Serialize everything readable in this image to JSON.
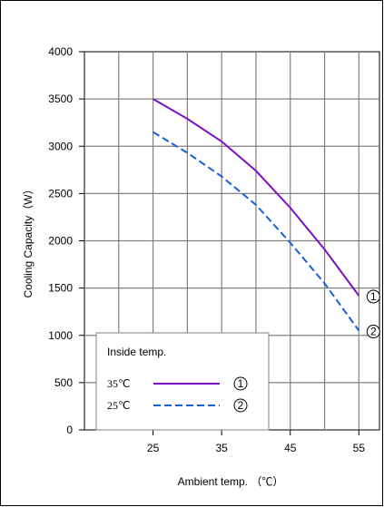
{
  "chart_data": {
    "type": "line",
    "xlabel": "Ambient temp. （℃）",
    "ylabel": "Cooling Capacity（W）",
    "xlim": [
      15,
      58
    ],
    "ylim": [
      0,
      4000
    ],
    "xticks": [
      25,
      35,
      45,
      55
    ],
    "yticks": [
      0,
      500,
      1000,
      1500,
      2000,
      2500,
      3000,
      3500,
      4000
    ],
    "grid": true,
    "legend": {
      "title": "Inside temp.",
      "placement": "bottom-left",
      "entries": [
        {
          "label": "35℃",
          "marker": "①"
        },
        {
          "label": "25℃",
          "marker": "②"
        }
      ]
    },
    "series": [
      {
        "name": "35℃",
        "marker": "①",
        "color": "#7B10C8",
        "style": "solid",
        "x": [
          25,
          30,
          35,
          40,
          45,
          50,
          55
        ],
        "values": [
          3500,
          3290,
          3050,
          2740,
          2350,
          1910,
          1420
        ]
      },
      {
        "name": "25℃",
        "marker": "②",
        "color": "#1560E0",
        "style": "dashed",
        "x": [
          25,
          30,
          35,
          40,
          45,
          50,
          55
        ],
        "values": [
          3150,
          2930,
          2680,
          2380,
          1980,
          1550,
          1050
        ]
      }
    ]
  }
}
